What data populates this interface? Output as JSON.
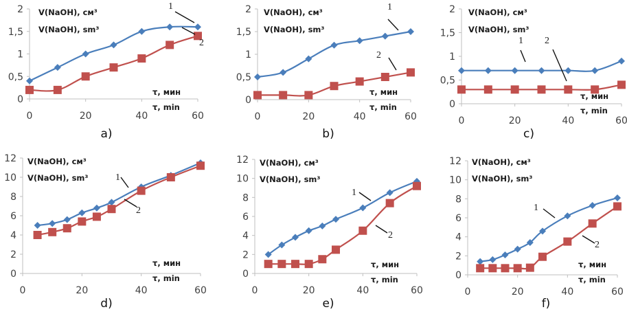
{
  "figure": {
    "colors": {
      "series1": "#4a7ebb",
      "series2": "#c0504d"
    }
  },
  "chart_data": [
    {
      "type": "line",
      "panel_label": "a)",
      "ylabel_ru": "V(NaOH), см³",
      "ylabel_en": "V(NaOH), sm³",
      "xlabel_ru": "τ, мин",
      "xlabel_en": "τ, min",
      "xlim": [
        0,
        60
      ],
      "ylim": [
        0,
        2
      ],
      "xticks": [
        "0",
        "20",
        "40",
        "60"
      ],
      "xtick_values": [
        0,
        20,
        40,
        60
      ],
      "yticks": [
        "0",
        "0,5",
        "1",
        "1,5",
        "2"
      ],
      "ytick_values": [
        0,
        0.5,
        1,
        1.5,
        2
      ],
      "x": [
        0,
        10,
        20,
        30,
        40,
        50,
        60
      ],
      "series": [
        {
          "name": "1",
          "marker": "diamond",
          "values": [
            0.4,
            0.7,
            1.0,
            1.2,
            1.5,
            1.6,
            1.6
          ]
        },
        {
          "name": "2",
          "marker": "square",
          "values": [
            0.2,
            0.2,
            0.5,
            0.7,
            0.9,
            1.2,
            1.4
          ]
        }
      ],
      "annotations": [
        "1",
        "2"
      ]
    },
    {
      "type": "line",
      "panel_label": "b)",
      "ylabel_ru": "V(NaOH), см³",
      "ylabel_en": "V(NaOH), sm³",
      "xlabel_ru": "τ, мин",
      "xlabel_en": "τ, min",
      "xlim": [
        0,
        60
      ],
      "ylim": [
        0,
        2
      ],
      "xticks": [
        "0",
        "20",
        "40",
        "60"
      ],
      "xtick_values": [
        0,
        20,
        40,
        60
      ],
      "yticks": [
        "0",
        "0,5",
        "1",
        "1,5",
        "2"
      ],
      "ytick_values": [
        0,
        0.5,
        1,
        1.5,
        2
      ],
      "x": [
        0,
        10,
        20,
        30,
        40,
        50,
        60
      ],
      "series": [
        {
          "name": "1",
          "marker": "diamond",
          "values": [
            0.5,
            0.6,
            0.9,
            1.2,
            1.3,
            1.4,
            1.5
          ]
        },
        {
          "name": "2",
          "marker": "square",
          "values": [
            0.1,
            0.1,
            0.1,
            0.3,
            0.4,
            0.5,
            0.6
          ]
        }
      ],
      "annotations": [
        "1",
        "2"
      ]
    },
    {
      "type": "line",
      "panel_label": "c)",
      "ylabel_ru": "V(NaOH), см³",
      "ylabel_en": "V(NaOH), sm³",
      "xlabel_ru": "τ, мин",
      "xlabel_en": "τ, min",
      "xlim": [
        0,
        60
      ],
      "ylim": [
        0,
        2
      ],
      "xticks": [
        "0",
        "20",
        "40",
        "60"
      ],
      "xtick_values": [
        0,
        20,
        40,
        60
      ],
      "yticks": [
        "0",
        "0,5",
        "1",
        "1,5",
        "2"
      ],
      "ytick_values": [
        0,
        0.5,
        1,
        1.5,
        2
      ],
      "x": [
        0,
        10,
        20,
        30,
        40,
        50,
        60
      ],
      "series": [
        {
          "name": "1",
          "marker": "diamond",
          "values": [
            0.7,
            0.7,
            0.7,
            0.7,
            0.7,
            0.7,
            0.9
          ]
        },
        {
          "name": "2",
          "marker": "square",
          "values": [
            0.3,
            0.3,
            0.3,
            0.3,
            0.3,
            0.3,
            0.4
          ]
        }
      ],
      "annotations": [
        "1",
        "2"
      ]
    },
    {
      "type": "line",
      "panel_label": "d)",
      "ylabel_ru": "V(NaOH), см³",
      "ylabel_en": "V(NaOH), sm³",
      "xlabel_ru": "τ, мин",
      "xlabel_en": "τ, min",
      "xlim": [
        0,
        60
      ],
      "ylim": [
        0,
        12
      ],
      "xticks": [
        "0",
        "20",
        "40",
        "60"
      ],
      "xtick_values": [
        0,
        20,
        40,
        60
      ],
      "yticks": [
        "0",
        "2",
        "4",
        "6",
        "8",
        "10",
        "12"
      ],
      "ytick_values": [
        0,
        2,
        4,
        6,
        8,
        10,
        12
      ],
      "x": [
        5,
        10,
        15,
        20,
        25,
        30,
        40,
        50,
        60
      ],
      "series": [
        {
          "name": "1",
          "marker": "diamond",
          "values": [
            5.0,
            5.2,
            5.6,
            6.3,
            6.8,
            7.4,
            9.0,
            10.2,
            11.5
          ]
        },
        {
          "name": "2",
          "marker": "square",
          "values": [
            4.0,
            4.3,
            4.7,
            5.4,
            5.9,
            6.7,
            8.6,
            10.0,
            11.2
          ]
        }
      ],
      "annotations": [
        "1",
        "2"
      ]
    },
    {
      "type": "line",
      "panel_label": "e)",
      "ylabel_ru": "V(NaOH), см³",
      "ylabel_en": "V(NaOH), sm³",
      "xlabel_ru": "τ, мин",
      "xlabel_en": "τ, min",
      "xlim": [
        0,
        60
      ],
      "ylim": [
        0,
        12
      ],
      "xticks": [
        "0",
        "20",
        "40",
        "60"
      ],
      "xtick_values": [
        0,
        20,
        40,
        60
      ],
      "yticks": [
        "0",
        "2",
        "4",
        "6",
        "8",
        "10",
        "12"
      ],
      "ytick_values": [
        0,
        2,
        4,
        6,
        8,
        10,
        12
      ],
      "x": [
        5,
        10,
        15,
        20,
        25,
        30,
        40,
        50,
        60
      ],
      "series": [
        {
          "name": "1",
          "marker": "diamond",
          "values": [
            2.0,
            3.0,
            3.8,
            4.5,
            5.0,
            5.7,
            6.9,
            8.5,
            9.7
          ]
        },
        {
          "name": "2",
          "marker": "square",
          "values": [
            1.0,
            1.0,
            1.0,
            1.0,
            1.5,
            2.5,
            4.5,
            7.4,
            9.2
          ]
        }
      ],
      "annotations": [
        "1",
        "2"
      ]
    },
    {
      "type": "line",
      "panel_label": "f)",
      "ylabel_ru": "V(NaOH), см³",
      "ylabel_en": "V(NaOH), sm³",
      "xlabel_ru": "τ, мин",
      "xlabel_en": "τ, min",
      "xlim": [
        0,
        60
      ],
      "ylim": [
        0,
        12
      ],
      "xticks": [
        "0",
        "20",
        "40",
        "60"
      ],
      "xtick_values": [
        0,
        20,
        40,
        60
      ],
      "yticks": [
        "0",
        "2",
        "4",
        "6",
        "8",
        "10",
        "12"
      ],
      "ytick_values": [
        0,
        2,
        4,
        6,
        8,
        10,
        12
      ],
      "x": [
        5,
        10,
        15,
        20,
        25,
        30,
        40,
        50,
        60
      ],
      "series": [
        {
          "name": "1",
          "marker": "diamond",
          "values": [
            1.4,
            1.6,
            2.1,
            2.7,
            3.4,
            4.6,
            6.2,
            7.3,
            8.1
          ]
        },
        {
          "name": "2",
          "marker": "square",
          "values": [
            0.7,
            0.7,
            0.7,
            0.7,
            0.75,
            1.9,
            3.5,
            5.4,
            7.2
          ]
        }
      ],
      "annotations": [
        "1",
        "2"
      ]
    }
  ]
}
